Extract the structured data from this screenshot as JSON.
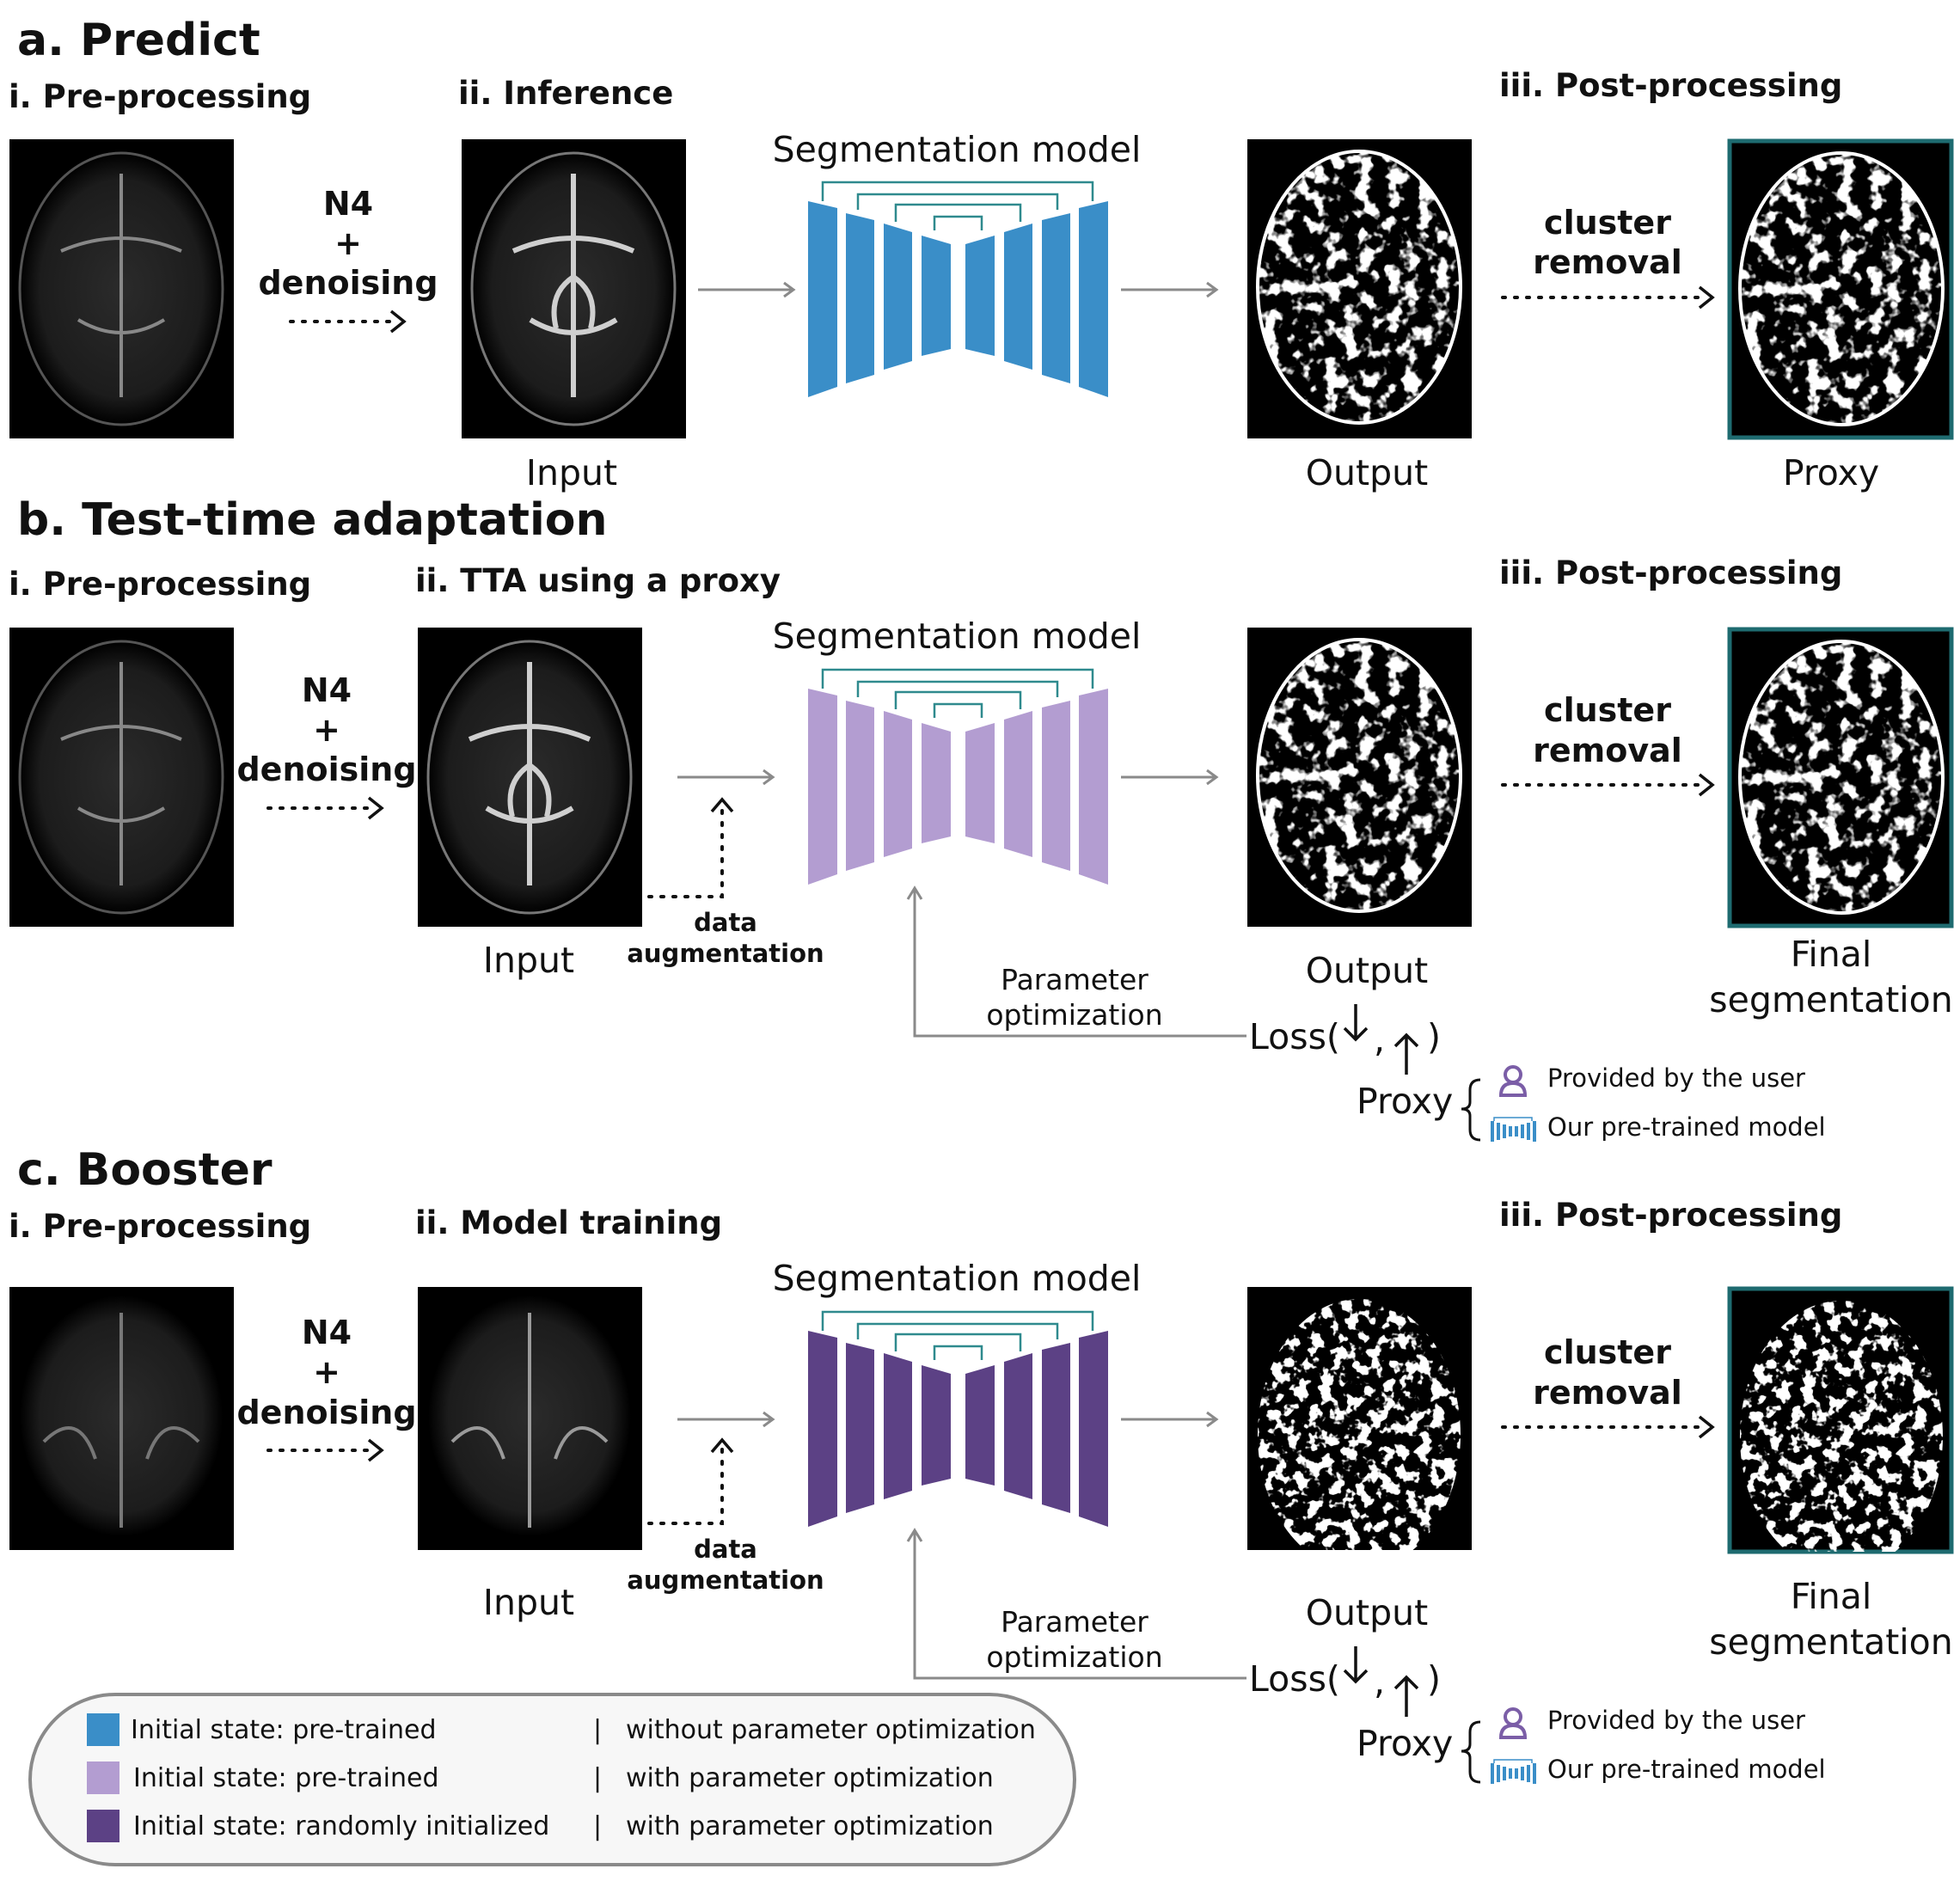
{
  "panels": [
    {
      "id": "a",
      "title": "a. Predict",
      "pre": "i. Pre-processing",
      "step2": "ii. Inference",
      "post": "iii. Post-processing",
      "n4": "N4",
      "plus": "+",
      "denoise": "denoising",
      "model": "Segmentation model",
      "input": "Input",
      "output": "Output",
      "cluster1": "cluster",
      "cluster2": "removal",
      "final1": "Proxy",
      "final2": "",
      "model_color": "#3a8ec8"
    },
    {
      "id": "b",
      "title": "b. Test-time adaptation",
      "pre": "i. Pre-processing",
      "step2": "ii. TTA using a proxy",
      "post": "iii. Post-processing",
      "n4": "N4",
      "plus": "+",
      "denoise": "denoising",
      "model": "Segmentation model",
      "input": "Input",
      "output": "Output",
      "cluster1": "cluster",
      "cluster2": "removal",
      "final1": "Final",
      "final2": "segmentation",
      "aug1": "data",
      "aug2": "augmentation",
      "param1": "Parameter",
      "param2": "optimization",
      "loss_open": "Loss(",
      "loss_close": ")",
      "comma": ",",
      "proxy": "Proxy",
      "user": "Provided by the user",
      "pretrained": "Our pre-trained model",
      "model_color": "#b39dd1"
    },
    {
      "id": "c",
      "title": "c. Booster",
      "pre": "i. Pre-processing",
      "step2": "ii. Model training",
      "post": "iii. Post-processing",
      "n4": "N4",
      "plus": "+",
      "denoise": "denoising",
      "model": "Segmentation model",
      "input": "Input",
      "output": "Output",
      "cluster1": "cluster",
      "cluster2": "removal",
      "final1": "Final",
      "final2": "segmentation",
      "aug1": "data",
      "aug2": "augmentation",
      "param1": "Parameter",
      "param2": "optimization",
      "loss_open": "Loss(",
      "loss_close": ")",
      "comma": ",",
      "proxy": "Proxy",
      "user": "Provided by the user",
      "pretrained": "Our pre-trained model",
      "model_color": "#5c4185"
    }
  ],
  "legend": [
    {
      "color": "#3a8ec8",
      "state": "Initial state: pre-trained",
      "sep": "|",
      "mode": "without parameter optimization"
    },
    {
      "color": "#b39dd1",
      "state": "Initial state: pre-trained",
      "sep": "|",
      "mode": "with parameter optimization"
    },
    {
      "color": "#5c4185",
      "state": "Initial state: randomly initialized",
      "sep": "|",
      "mode": "with parameter optimization"
    }
  ],
  "colors": {
    "skip_line": "#2f8a8e",
    "final_frame": "#1e6b70",
    "user_icon": "#7b5ea7",
    "pretrained_icon": "#3a8ec8",
    "arrow_gray": "#8a8a8a"
  },
  "icons": [
    "user-icon",
    "network-icon"
  ]
}
